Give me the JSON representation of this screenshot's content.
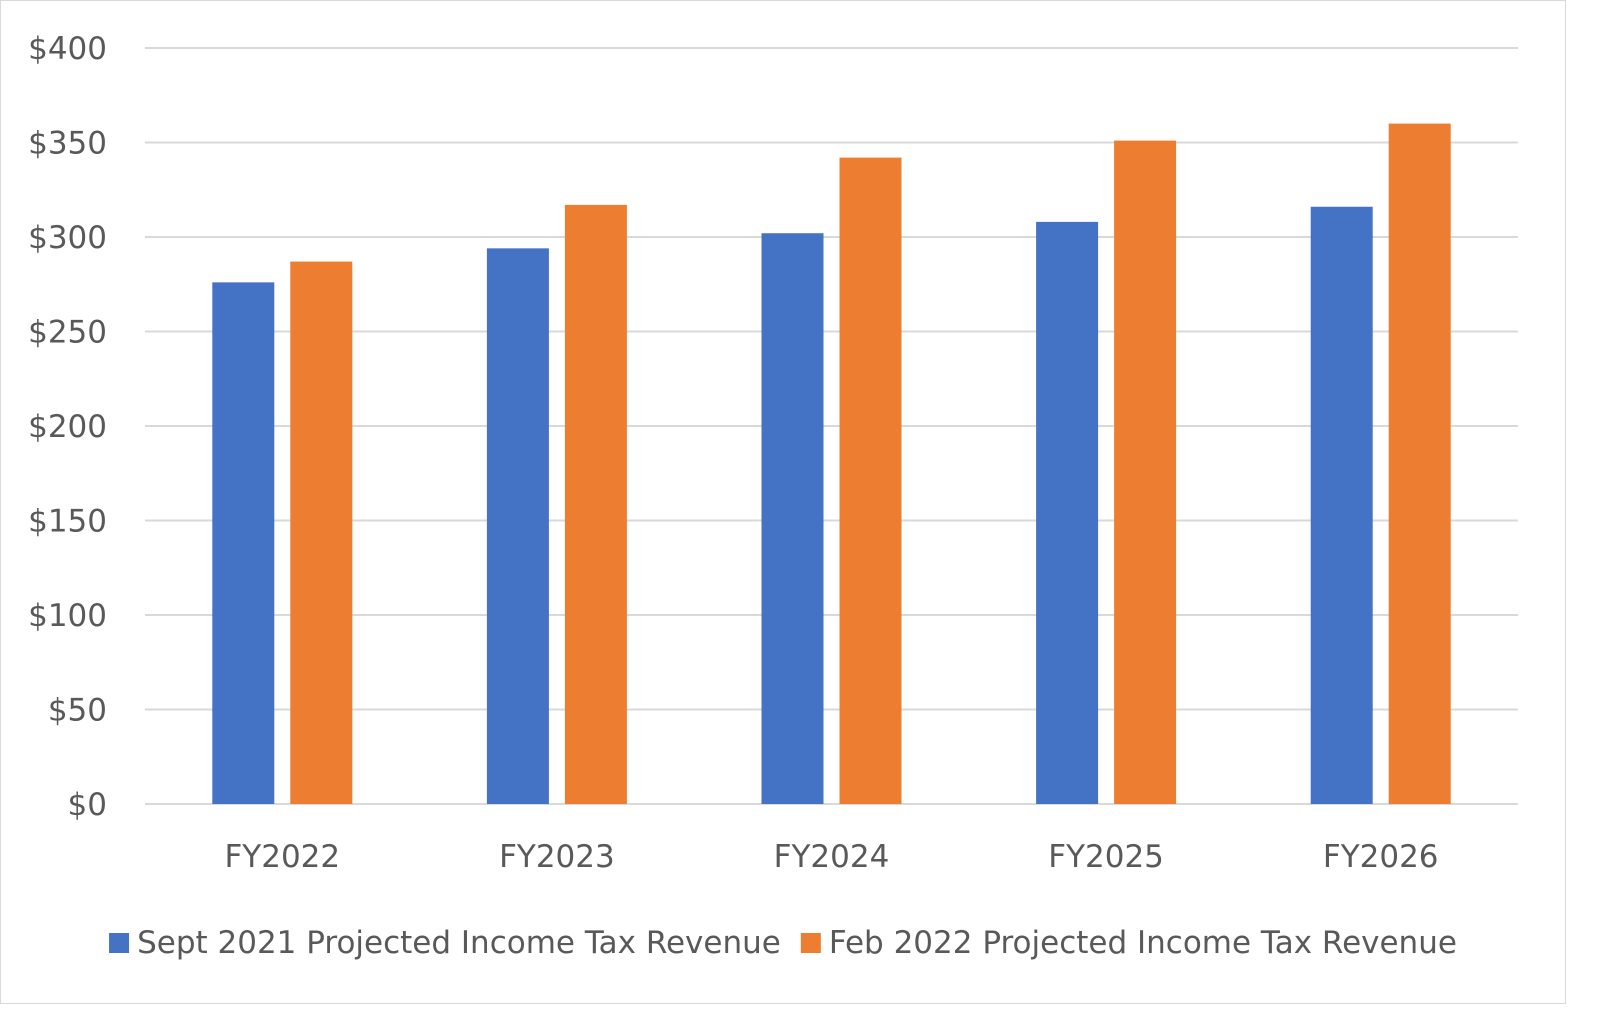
{
  "chart_data": {
    "type": "bar",
    "categories": [
      "FY2022",
      "FY2023",
      "FY2024",
      "FY2025",
      "FY2026"
    ],
    "series": [
      {
        "name": "Sept 2021 Projected Income Tax Revenue",
        "color": "#4472C4",
        "values": [
          276,
          294,
          302,
          308,
          316
        ]
      },
      {
        "name": "Feb 2022 Projected Income Tax Revenue",
        "color": "#ED7D31",
        "values": [
          287,
          317,
          342,
          351,
          360
        ]
      }
    ],
    "title": "",
    "xlabel": "",
    "ylabel": "",
    "ylim": [
      0,
      400
    ],
    "yticks": [
      {
        "value": 0,
        "label": "$0"
      },
      {
        "value": 50,
        "label": "$50"
      },
      {
        "value": 100,
        "label": "$100"
      },
      {
        "value": 150,
        "label": "$150"
      },
      {
        "value": 200,
        "label": "$200"
      },
      {
        "value": 250,
        "label": "$250"
      },
      {
        "value": 300,
        "label": "$300"
      },
      {
        "value": 350,
        "label": "$350"
      },
      {
        "value": 400,
        "label": "$400"
      }
    ],
    "grid": true,
    "gridline_color": "#d9d9d9",
    "legend_position": "bottom"
  }
}
